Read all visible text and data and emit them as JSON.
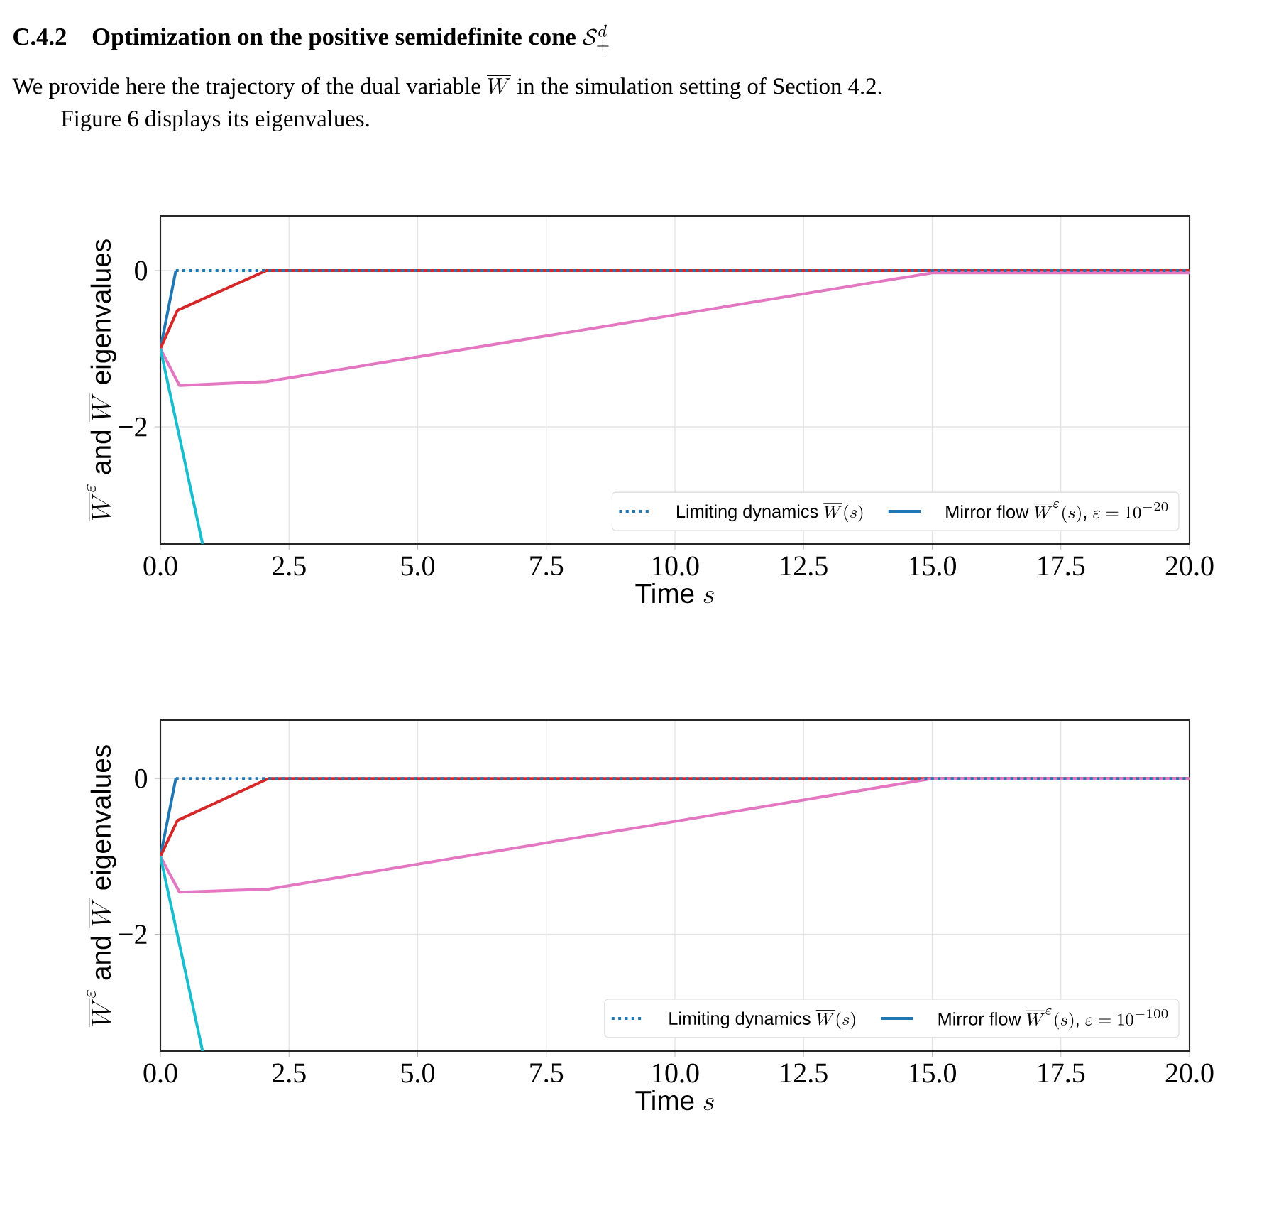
{
  "chart_data": [
    {
      "type": "line",
      "title": "\\textbf{C.4.2\\quad Optimization on the positive semidefinite cone }\\mathcal{S}_{+}^{d}",
      "subtitle": "\\textrm{We provide here the trajectory of the dual variable }\\overline{W}\\textrm{ in the simulation setting of Section 4.2.}",
      "annotations": [
        "Figure 6 displays its eigenvalues."
      ],
      "xlabel": "\\textsf{Time }s",
      "ylabel": "\\overline{W}^{\\varepsilon}\\textsf{ and }\\overline{W}\\textsf{ eigenvalues}",
      "xlim": [
        0,
        20
      ],
      "ylim": [
        -3.5,
        0.7
      ],
      "xticks": [
        {
          "value": 0,
          "label": "0.0"
        },
        {
          "value": 2.5,
          "label": "2.5"
        },
        {
          "value": 5,
          "label": "5.0"
        },
        {
          "value": 7.5,
          "label": "7.5"
        },
        {
          "value": 10,
          "label": "10.0"
        },
        {
          "value": 12.5,
          "label": "12.5"
        },
        {
          "value": 15,
          "label": "15.0"
        },
        {
          "value": 17.5,
          "label": "17.5"
        },
        {
          "value": 20,
          "label": "20.0"
        }
      ],
      "yticks": [
        {
          "value": -2,
          "label": "−2"
        },
        0
      ],
      "grid": true,
      "legend": "bottom right",
      "marker": "none",
      "series": [
        {
          "name": "\\textsf{Limiting dynamics }\\overline{W}(s)",
          "color": "#1f77b4",
          "line_style": "dotted",
          "x": [
            0.3,
            20
          ],
          "values": [
            0,
            0
          ]
        },
        {
          "name": "\\textsf{Mirror flow }\\overline{W}^{\\varepsilon}(s)\\textsf{, }\\varepsilon=10^{-20}",
          "color": "#1f77b4",
          "line_style": "solid",
          "x": [
            0,
            0.3
          ],
          "values": [
            -1,
            0
          ]
        },
        {
          "color": "#d62728",
          "line_style": "solid",
          "x": [
            0,
            0.33,
            2.06,
            20
          ],
          "values": [
            -1,
            -0.51,
            0,
            0
          ]
        },
        {
          "color": "#e377c2",
          "line_style": "solid",
          "x": [
            0,
            0.37,
            2.06,
            15,
            20
          ],
          "values": [
            -1,
            -1.47,
            -1.42,
            -0.03,
            -0.03
          ]
        },
        {
          "color": "#17becf",
          "line_style": "solid",
          "x": [
            0,
            0.82
          ],
          "values": [
            -1,
            -3.5
          ]
        }
      ]
    },
    {
      "type": "line",
      "xlabel": "\\textsf{Time }s",
      "ylabel": "\\overline{W}^{\\varepsilon}\\textsf{ and }\\overline{W}\\textsf{ eigenvalues}",
      "xlim": [
        0,
        20
      ],
      "ylim": [
        -3.5,
        0.75
      ],
      "xticks": [
        {
          "value": 0,
          "label": "0.0"
        },
        {
          "value": 2.5,
          "label": "2.5"
        },
        {
          "value": 5,
          "label": "5.0"
        },
        {
          "value": 7.5,
          "label": "7.5"
        },
        {
          "value": 10,
          "label": "10.0"
        },
        {
          "value": 12.5,
          "label": "12.5"
        },
        {
          "value": 15,
          "label": "15.0"
        },
        {
          "value": 17.5,
          "label": "17.5"
        },
        {
          "value": 20,
          "label": "20.0"
        }
      ],
      "yticks": [
        {
          "value": -2,
          "label": "−2"
        },
        0
      ],
      "grid": true,
      "legend": "bottom right",
      "marker": "none",
      "series": [
        {
          "name": "\\textsf{Limiting dynamics }\\overline{W}(s)",
          "color": "#1f77b4",
          "line_style": "dotted",
          "x": [
            0.3,
            20
          ],
          "values": [
            0,
            0
          ]
        },
        {
          "name": "\\textsf{Mirror flow }\\overline{W}^{\\varepsilon}(s)\\textsf{, }\\varepsilon=10^{-100}",
          "color": "#1f77b4",
          "line_style": "solid",
          "x": [
            0,
            0.3
          ],
          "values": [
            -1,
            0
          ]
        },
        {
          "color": "#d62728",
          "line_style": "solid",
          "x": [
            0,
            0.33,
            2.1,
            20
          ],
          "values": [
            -1,
            -0.54,
            0,
            0
          ]
        },
        {
          "color": "#e377c2",
          "line_style": "solid",
          "x": [
            0,
            0.37,
            2.1,
            15,
            20
          ],
          "values": [
            -1,
            -1.46,
            -1.42,
            0,
            0
          ]
        },
        {
          "color": "#17becf",
          "line_style": "solid",
          "x": [
            0,
            0.82
          ],
          "values": [
            -1,
            -3.5
          ]
        }
      ]
    }
  ]
}
